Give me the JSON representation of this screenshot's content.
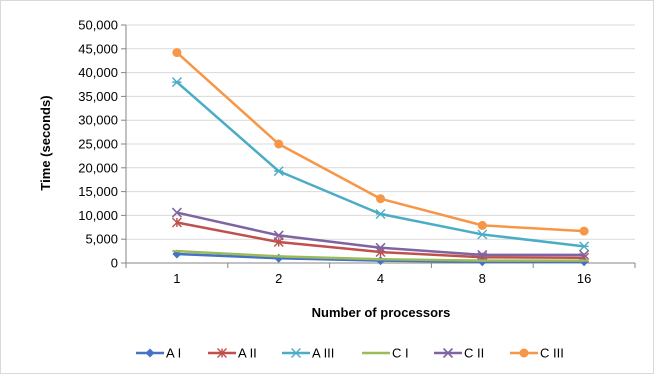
{
  "chart_data": {
    "type": "line",
    "title": "",
    "xlabel": "Number of processors",
    "ylabel": "Time (seconds)",
    "categories": [
      "1",
      "2",
      "4",
      "8",
      "16"
    ],
    "ylim": [
      0,
      50000
    ],
    "yticks": [
      0,
      5000,
      10000,
      15000,
      20000,
      25000,
      30000,
      35000,
      40000,
      45000,
      50000
    ],
    "ytick_labels": [
      "0",
      "5,000",
      "10,000",
      "15,000",
      "20,000",
      "25,000",
      "30,000",
      "35,000",
      "40,000",
      "45,000",
      "50,000"
    ],
    "grid": "horizontal",
    "legend_position": "bottom",
    "series": [
      {
        "name": "A I",
        "values": [
          1900,
          1000,
          500,
          250,
          250
        ],
        "color": "#4472c4",
        "marker": "diamond"
      },
      {
        "name": "A II",
        "values": [
          8500,
          4400,
          2300,
          1200,
          1100
        ],
        "color": "#c0504d",
        "marker": "asterisk"
      },
      {
        "name": "A III",
        "values": [
          38000,
          19300,
          10300,
          6000,
          3500
        ],
        "color": "#4bacc6",
        "marker": "star"
      },
      {
        "name": "C I",
        "values": [
          2500,
          1400,
          800,
          500,
          500
        ],
        "color": "#9bbb59",
        "marker": "dash"
      },
      {
        "name": "C II",
        "values": [
          10600,
          5800,
          3200,
          1700,
          1700
        ],
        "color": "#8064a2",
        "marker": "x"
      },
      {
        "name": "C III",
        "values": [
          44200,
          25000,
          13500,
          7900,
          6700
        ],
        "color": "#f79646",
        "marker": "circle"
      }
    ]
  }
}
